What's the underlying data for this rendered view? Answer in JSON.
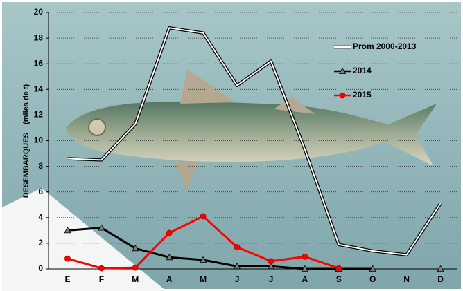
{
  "chart_data": {
    "type": "line",
    "y_label": "DESEMBARQUES    (miles de t)",
    "categories": [
      "E",
      "F",
      "M",
      "A",
      "M",
      "J",
      "J",
      "A",
      "S",
      "O",
      "N",
      "D"
    ],
    "series": [
      {
        "name": "Prom 2000-2013",
        "color": "#ffffff",
        "outline": "#000000",
        "marker": "none",
        "values": [
          8.6,
          8.5,
          11.3,
          18.8,
          18.4,
          14.3,
          16.2,
          9.3,
          1.9,
          1.4,
          1.1,
          5.1
        ]
      },
      {
        "name": "2014",
        "color": "#000000",
        "marker": "triangle",
        "marker_color": "#808080",
        "values": [
          3.0,
          3.2,
          1.6,
          0.9,
          0.7,
          0.2,
          0.2,
          0.0,
          0.0,
          0.0,
          null,
          0.0
        ]
      },
      {
        "name": "2015",
        "color": "#ff0000",
        "marker": "circle",
        "marker_color": "#ff0000",
        "values": [
          0.8,
          0.05,
          0.1,
          2.8,
          4.1,
          1.7,
          0.6,
          0.95,
          0.05,
          null,
          null,
          null
        ]
      }
    ],
    "ylim": [
      0,
      20
    ],
    "yticks": [
      0,
      2,
      4,
      6,
      8,
      10,
      12,
      14,
      16,
      18,
      20
    ],
    "grid": true,
    "legend": "upper right"
  }
}
